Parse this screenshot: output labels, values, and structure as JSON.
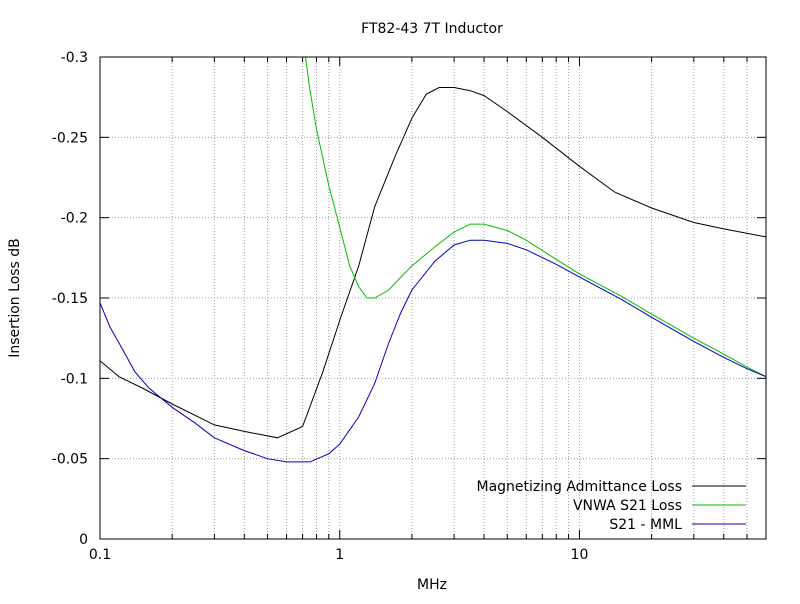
{
  "chart_data": {
    "type": "line",
    "title": "FT82-43 7T Inductor",
    "xlabel": "MHz",
    "ylabel": "Insertion Loss dB",
    "xscale": "log",
    "xlim": [
      0.1,
      60
    ],
    "ylim": [
      0,
      -0.3
    ],
    "y_axis_inverted": true,
    "grid": true,
    "legend_position": "bottom-right",
    "x_ticks": [
      {
        "value": 0.1,
        "label": "0.1"
      },
      {
        "value": 1,
        "label": "1"
      },
      {
        "value": 10,
        "label": "10"
      }
    ],
    "y_ticks": [
      {
        "value": 0,
        "label": "0"
      },
      {
        "value": -0.05,
        "label": "-0.05"
      },
      {
        "value": -0.1,
        "label": "-0.1"
      },
      {
        "value": -0.15,
        "label": "-0.15"
      },
      {
        "value": -0.2,
        "label": "-0.2"
      },
      {
        "value": -0.25,
        "label": "-0.25"
      },
      {
        "value": -0.3,
        "label": "-0.3"
      }
    ],
    "series": [
      {
        "name": "Magnetizing Admittance Loss",
        "color": "#000000",
        "points": [
          [
            0.1,
            -0.111
          ],
          [
            0.12,
            -0.101
          ],
          [
            0.15,
            -0.094
          ],
          [
            0.2,
            -0.084
          ],
          [
            0.3,
            -0.071
          ],
          [
            0.4,
            -0.067
          ],
          [
            0.55,
            -0.063
          ],
          [
            0.7,
            -0.07
          ],
          [
            0.85,
            -0.104
          ],
          [
            1.0,
            -0.136
          ],
          [
            1.2,
            -0.17
          ],
          [
            1.4,
            -0.207
          ],
          [
            1.7,
            -0.238
          ],
          [
            2.0,
            -0.262
          ],
          [
            2.3,
            -0.277
          ],
          [
            2.6,
            -0.281
          ],
          [
            3.0,
            -0.281
          ],
          [
            3.5,
            -0.279
          ],
          [
            4.0,
            -0.276
          ],
          [
            5.0,
            -0.266
          ],
          [
            7.0,
            -0.25
          ],
          [
            10,
            -0.232
          ],
          [
            14,
            -0.216
          ],
          [
            20,
            -0.206
          ],
          [
            30,
            -0.197
          ],
          [
            40,
            -0.193
          ],
          [
            60,
            -0.188
          ]
        ]
      },
      {
        "name": "VNWA S21 Loss",
        "color": "#00c000",
        "points": [
          [
            0.72,
            -0.3
          ],
          [
            0.75,
            -0.28
          ],
          [
            0.8,
            -0.255
          ],
          [
            0.9,
            -0.22
          ],
          [
            1.0,
            -0.194
          ],
          [
            1.1,
            -0.17
          ],
          [
            1.2,
            -0.157
          ],
          [
            1.3,
            -0.15
          ],
          [
            1.4,
            -0.15
          ],
          [
            1.6,
            -0.155
          ],
          [
            1.8,
            -0.163
          ],
          [
            2.0,
            -0.17
          ],
          [
            2.5,
            -0.182
          ],
          [
            3.0,
            -0.191
          ],
          [
            3.5,
            -0.196
          ],
          [
            4.0,
            -0.196
          ],
          [
            5.0,
            -0.192
          ],
          [
            6.0,
            -0.186
          ],
          [
            8.0,
            -0.174
          ],
          [
            10,
            -0.165
          ],
          [
            15,
            -0.151
          ],
          [
            20,
            -0.14
          ],
          [
            30,
            -0.125
          ],
          [
            40,
            -0.115
          ],
          [
            50,
            -0.107
          ],
          [
            60,
            -0.101
          ]
        ]
      },
      {
        "name": "S21 - MML",
        "color": "#0000c0",
        "points": [
          [
            0.1,
            -0.147
          ],
          [
            0.11,
            -0.132
          ],
          [
            0.12,
            -0.122
          ],
          [
            0.14,
            -0.104
          ],
          [
            0.16,
            -0.094
          ],
          [
            0.2,
            -0.082
          ],
          [
            0.25,
            -0.072
          ],
          [
            0.3,
            -0.063
          ],
          [
            0.4,
            -0.055
          ],
          [
            0.5,
            -0.05
          ],
          [
            0.6,
            -0.048
          ],
          [
            0.75,
            -0.048
          ],
          [
            0.9,
            -0.053
          ],
          [
            1.0,
            -0.059
          ],
          [
            1.2,
            -0.076
          ],
          [
            1.4,
            -0.097
          ],
          [
            1.6,
            -0.122
          ],
          [
            1.8,
            -0.141
          ],
          [
            2.0,
            -0.155
          ],
          [
            2.5,
            -0.173
          ],
          [
            3.0,
            -0.183
          ],
          [
            3.5,
            -0.186
          ],
          [
            4.0,
            -0.186
          ],
          [
            5.0,
            -0.184
          ],
          [
            6.0,
            -0.18
          ],
          [
            8.0,
            -0.171
          ],
          [
            10,
            -0.163
          ],
          [
            15,
            -0.149
          ],
          [
            20,
            -0.138
          ],
          [
            30,
            -0.123
          ],
          [
            40,
            -0.113
          ],
          [
            50,
            -0.106
          ],
          [
            60,
            -0.101
          ]
        ]
      }
    ]
  }
}
